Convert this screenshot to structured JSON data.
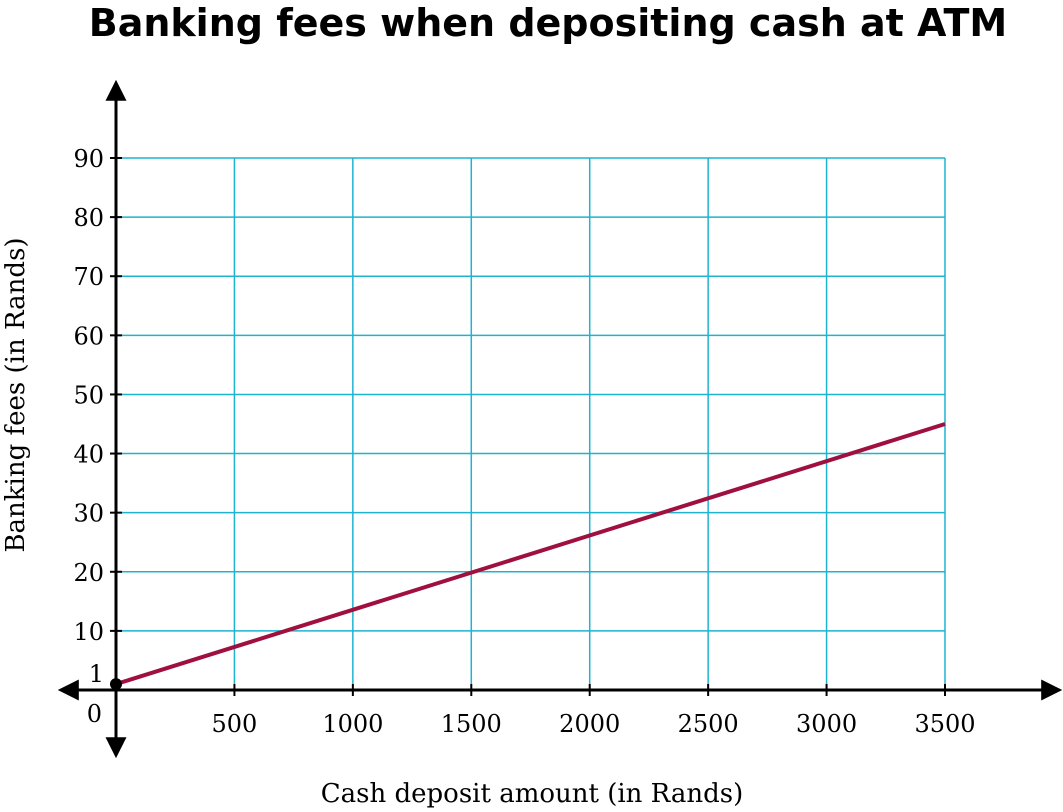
{
  "chart_data": {
    "type": "line",
    "title": "Banking fees when depositing cash at ATM",
    "xlabel": "Cash deposit amount (in Rands)",
    "ylabel": "Banking fees (in Rands)",
    "xlim": [
      0,
      3500
    ],
    "ylim": [
      0,
      90
    ],
    "x_ticks": [
      500,
      1000,
      1500,
      2000,
      2500,
      3000,
      3500
    ],
    "y_ticks": [
      10,
      20,
      30,
      40,
      50,
      60,
      70,
      80,
      90
    ],
    "x_tick_labels": [
      "500",
      "1000",
      "1500",
      "2000",
      "2500",
      "3000",
      "3500"
    ],
    "y_tick_labels": [
      "10",
      "20",
      "30",
      "40",
      "50",
      "60",
      "70",
      "80",
      "90"
    ],
    "origin_label": "0",
    "intercept_label": "1",
    "grid": true,
    "series": [
      {
        "x": [
          0,
          3500
        ],
        "y": [
          1,
          45
        ],
        "color": "#a0103f"
      }
    ],
    "points": [
      {
        "x": 0,
        "y": 1
      }
    ],
    "colors": {
      "grid": "#1fb3d0",
      "axis": "#000000",
      "line": "#a0103f"
    }
  }
}
